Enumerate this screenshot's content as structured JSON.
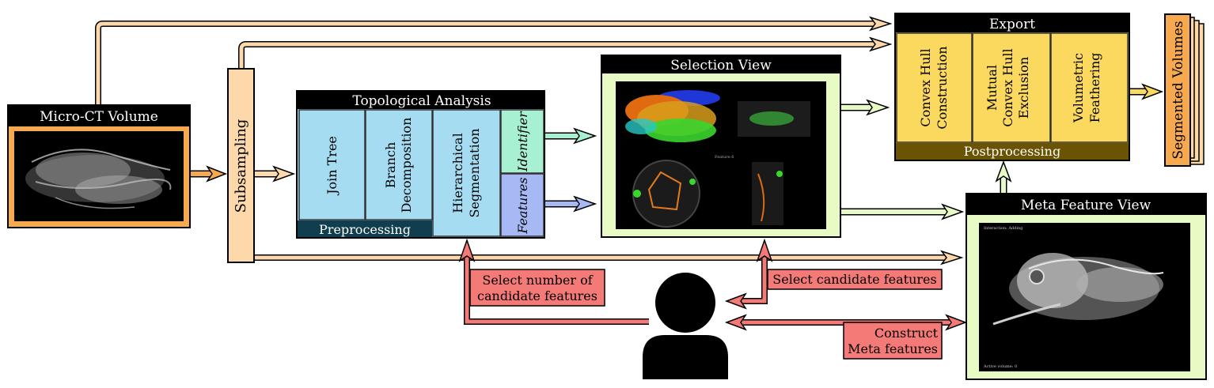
{
  "colors": {
    "orange_box": "#f6a94f",
    "peach": "#fcd8aa",
    "light_blue": "#a6dcf2",
    "dark_teal": "#103e4f",
    "mint": "#a8f0d2",
    "lavender": "#a7b9f5",
    "pale_green": "#e9fbc5",
    "yellow": "#fbd85e",
    "olive": "#6b5304",
    "salmon": "#f47a78",
    "black": "#000000"
  },
  "nodes": {
    "micro_ct": {
      "title": "Micro-CT Volume"
    },
    "subsampling": {
      "label": "Subsampling"
    },
    "topological": {
      "title": "Topological Analysis",
      "join_tree": "Join Tree",
      "branch_1": "Branch",
      "branch_2": "Decomposition",
      "hier_1": "Hierarchical",
      "hier_2": "Segmentation",
      "identifier": "Identifier",
      "features": "Features",
      "footer": "Preprocessing"
    },
    "selection": {
      "title": "Selection View",
      "feature_caption": "Feature 6"
    },
    "export": {
      "title": "Export",
      "convex_1": "Convex Hull",
      "convex_2": "Construction",
      "mutual_1": "Mutual",
      "mutual_2": "Convex Hull",
      "mutual_3": "Exclusion",
      "vol_1": "Volumetric",
      "vol_2": "Feathering",
      "footer": "Postprocessing"
    },
    "meta": {
      "title": "Meta Feature View",
      "interaction": "Interaction: Adding",
      "active": "Active volume: 0"
    },
    "segmented": {
      "label": "Segmented Volumes"
    }
  },
  "callouts": {
    "select_number_1": "Select number of",
    "select_number_2": "candidate features",
    "select_candidate": "Select candidate features",
    "construct_1": "Construct",
    "construct_2": "Meta features"
  }
}
